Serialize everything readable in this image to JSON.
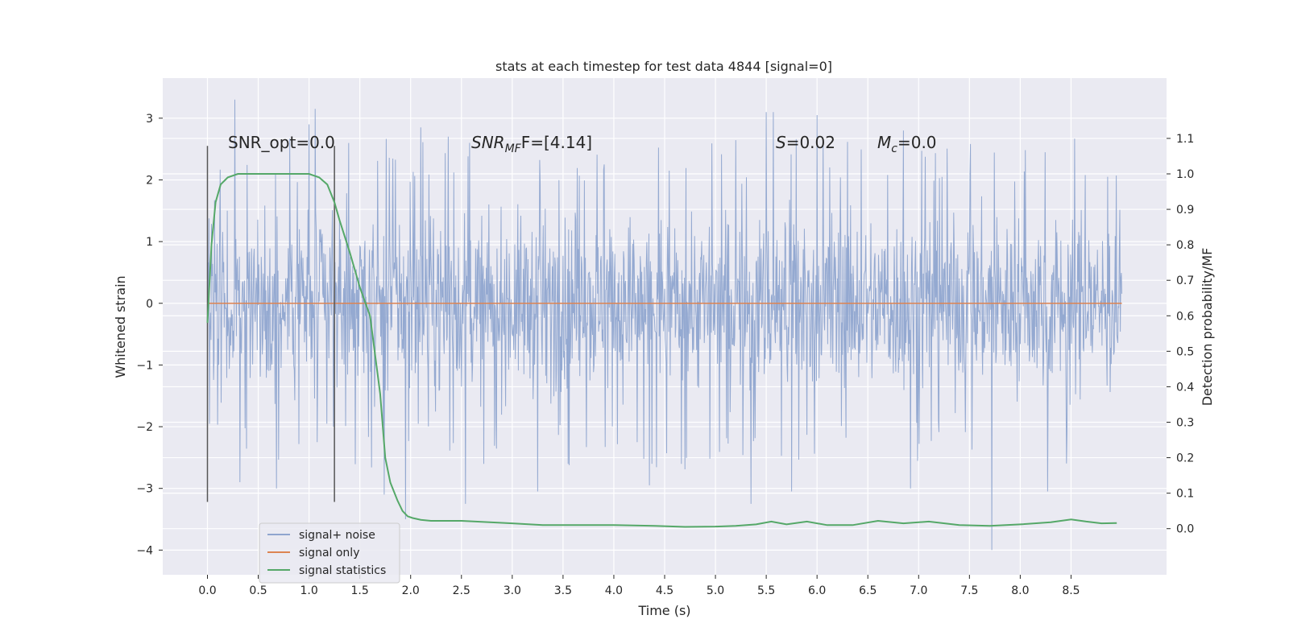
{
  "chart_data": {
    "type": "line",
    "title": "stats at each timestep for test data 4844 [signal=0]",
    "xlabel": "Time (s)",
    "ylabel": "Whitened strain",
    "y2label": "Detection probability/MF",
    "xlim": [
      -0.44,
      9.44
    ],
    "ylim": [
      -4.4,
      3.65
    ],
    "y2lim": [
      -0.13,
      1.27
    ],
    "xticks": [
      "0.0",
      "0.5",
      "1.0",
      "1.5",
      "2.0",
      "2.5",
      "3.0",
      "3.5",
      "4.0",
      "4.5",
      "5.0",
      "5.5",
      "6.0",
      "6.5",
      "7.0",
      "7.5",
      "8.0",
      "8.5"
    ],
    "yticks": [
      "3",
      "2",
      "1",
      "0",
      "−1",
      "−2",
      "−3",
      "−4"
    ],
    "y2ticks": [
      "1.1",
      "1.0",
      "0.9",
      "0.8",
      "0.7",
      "0.6",
      "0.5",
      "0.4",
      "0.3",
      "0.2",
      "0.1",
      "0.0"
    ],
    "grid": true,
    "legend_position": "lower-left",
    "series": [
      {
        "name": "signal+ noise",
        "color": "#8fa5cf",
        "axis": "left",
        "style": "dense noise, sampled approx. 2048 Hz from 0.0 to 9.0 s",
        "envelope": {
          "typical_abs_max": 1.85,
          "min": -4.0,
          "max": 3.3
        },
        "spikes": [
          {
            "x": 0.27,
            "y": 3.3
          },
          {
            "x": 1.06,
            "y": 3.15
          },
          {
            "x": 1.0,
            "y": 2.9
          },
          {
            "x": 5.5,
            "y": 3.1
          },
          {
            "x": 5.57,
            "y": 3.1
          },
          {
            "x": 6.0,
            "y": 3.05
          },
          {
            "x": 2.1,
            "y": 2.85
          },
          {
            "x": 6.85,
            "y": 2.8
          },
          {
            "x": 2.37,
            "y": 2.7
          },
          {
            "x": 7.72,
            "y": -4.0
          },
          {
            "x": 1.95,
            "y": -3.5
          },
          {
            "x": 2.54,
            "y": -3.25
          },
          {
            "x": 5.35,
            "y": -3.25
          },
          {
            "x": 1.74,
            "y": -3.1
          },
          {
            "x": 3.25,
            "y": -3.05
          },
          {
            "x": 8.27,
            "y": -3.05
          },
          {
            "x": 0.32,
            "y": -2.9
          },
          {
            "x": 0.68,
            "y": -3.0
          },
          {
            "x": 4.35,
            "y": -2.95
          },
          {
            "x": 5.75,
            "y": -3.05
          },
          {
            "x": 6.92,
            "y": -3.0
          }
        ]
      },
      {
        "name": "signal only",
        "color": "#dd8452",
        "axis": "left",
        "x": [
          0.0,
          9.0
        ],
        "y": [
          0.0,
          0.0
        ]
      },
      {
        "name": "signal statistics",
        "color": "#55a868",
        "axis": "right",
        "x": [
          0.0,
          0.04,
          0.08,
          0.13,
          0.2,
          0.3,
          0.5,
          0.8,
          1.0,
          1.1,
          1.18,
          1.25,
          1.3,
          1.4,
          1.5,
          1.6,
          1.7,
          1.75,
          1.8,
          1.87,
          1.92,
          1.97,
          2.02,
          2.1,
          2.2,
          2.5,
          3.0,
          3.3,
          3.6,
          4.0,
          4.4,
          4.7,
          5.0,
          5.2,
          5.4,
          5.55,
          5.7,
          5.9,
          6.1,
          6.35,
          6.6,
          6.85,
          7.1,
          7.4,
          7.7,
          8.0,
          8.3,
          8.5,
          8.65,
          8.8,
          8.95
        ],
        "y": [
          0.58,
          0.8,
          0.92,
          0.97,
          0.99,
          1.0,
          1.0,
          1.0,
          1.0,
          0.99,
          0.97,
          0.92,
          0.87,
          0.78,
          0.68,
          0.6,
          0.38,
          0.2,
          0.13,
          0.08,
          0.05,
          0.035,
          0.03,
          0.025,
          0.022,
          0.022,
          0.015,
          0.01,
          0.01,
          0.01,
          0.008,
          0.005,
          0.006,
          0.008,
          0.012,
          0.02,
          0.012,
          0.02,
          0.01,
          0.01,
          0.022,
          0.015,
          0.02,
          0.01,
          0.008,
          0.012,
          0.018,
          0.026,
          0.02,
          0.015,
          0.016
        ]
      }
    ],
    "vertical_lines": [
      {
        "x": 0.0,
        "y_from": -3.22,
        "y_to": 2.55,
        "color": "#555555"
      },
      {
        "x": 1.25,
        "y_from": -3.22,
        "y_to": 2.55,
        "color": "#555555"
      }
    ],
    "annotations": {
      "snr_opt": "SNR_opt=0.0",
      "snr_mf_main": "SNR",
      "snr_mf_sub": "MF",
      "snr_mf_rest": "F=[4.14]",
      "s_main": "S",
      "s_rest": "=0.02",
      "mc_main": "M",
      "mc_sub": "c",
      "mc_rest": "=0.0"
    }
  }
}
